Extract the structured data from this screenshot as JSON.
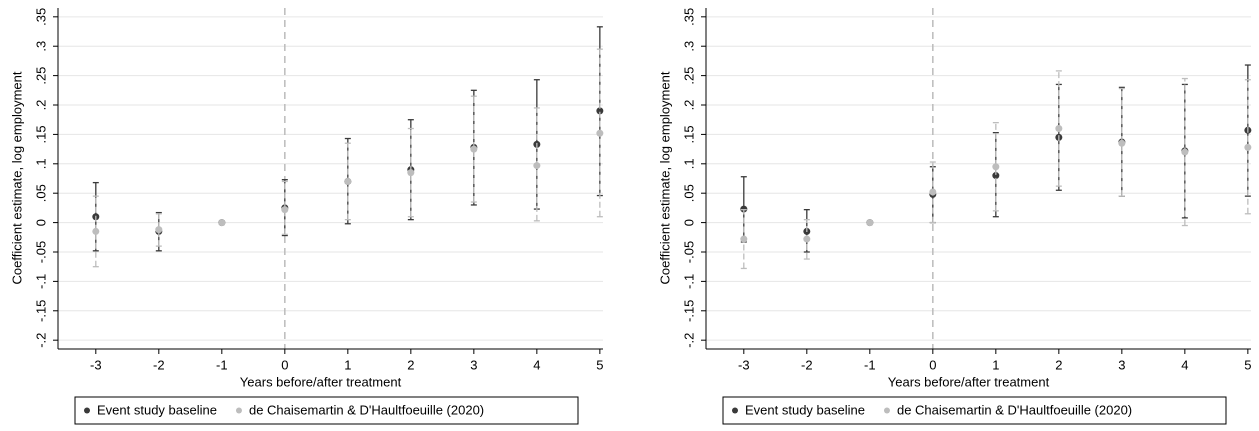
{
  "chart_data": [
    {
      "type": "errorbar",
      "x": [
        -3,
        -2,
        -1,
        0,
        1,
        2,
        3,
        4,
        5
      ],
      "xlabel": "Years before/after treatment",
      "ylabel": "Coefficient estimate, log employment",
      "xlim": [
        -3.6,
        5.05
      ],
      "xticks": [
        -3,
        -2,
        -1,
        0,
        1,
        2,
        3,
        4,
        5
      ],
      "ylim": [
        -0.215,
        0.365
      ],
      "yticks": [
        {
          "value": -0.2,
          "label": "-.2"
        },
        {
          "value": -0.15,
          "label": "-.15"
        },
        {
          "value": -0.1,
          "label": "-.1"
        },
        {
          "value": -0.05,
          "label": "-.05"
        },
        0,
        {
          "value": 0.05,
          "label": ".05"
        },
        {
          "value": 0.1,
          "label": ".1"
        },
        {
          "value": 0.15,
          "label": ".15"
        },
        {
          "value": 0.2,
          "label": ".2"
        },
        {
          "value": 0.25,
          "label": ".25"
        },
        {
          "value": 0.3,
          "label": ".3"
        },
        {
          "value": 0.35,
          "label": ".35"
        }
      ],
      "grid": true,
      "reference_line_x": 0,
      "legend": "bottom",
      "series": [
        {
          "name": "Event study baseline",
          "color": "#3a3a3a",
          "values": [
            0.01,
            -0.015,
            0,
            0.025,
            0.07,
            0.09,
            0.128,
            0.133,
            0.19
          ],
          "ci_low": [
            -0.048,
            -0.048,
            0,
            -0.022,
            -0.002,
            0.005,
            0.03,
            0.023,
            0.046
          ],
          "ci_high": [
            0.068,
            0.017,
            0,
            0.073,
            0.143,
            0.175,
            0.225,
            0.243,
            0.333
          ]
        },
        {
          "name": "de Chaisemartin & D'Haultfoeuille (2020)",
          "color": "#bdbdbd",
          "values": [
            -0.015,
            -0.012,
            0,
            0.022,
            0.07,
            0.085,
            0.125,
            0.097,
            0.152
          ],
          "ci_low": [
            -0.075,
            -0.04,
            0,
            -0.02,
            0.005,
            0.01,
            0.035,
            0.003,
            0.01
          ],
          "ci_high": [
            0.045,
            0.015,
            0,
            0.07,
            0.135,
            0.16,
            0.215,
            0.195,
            0.295
          ]
        }
      ]
    },
    {
      "type": "errorbar",
      "x": [
        -3,
        -2,
        -1,
        0,
        1,
        2,
        3,
        4,
        5
      ],
      "xlabel": "Years before/after treatment",
      "ylabel": "Coefficient estimate, log employment",
      "xlim": [
        -3.6,
        5.05
      ],
      "xticks": [
        -3,
        -2,
        -1,
        0,
        1,
        2,
        3,
        4,
        5
      ],
      "ylim": [
        -0.215,
        0.365
      ],
      "yticks": [
        {
          "value": -0.2,
          "label": "-.2"
        },
        {
          "value": -0.15,
          "label": "-.15"
        },
        {
          "value": -0.1,
          "label": "-.1"
        },
        {
          "value": -0.05,
          "label": "-.05"
        },
        0,
        {
          "value": 0.05,
          "label": ".05"
        },
        {
          "value": 0.1,
          "label": ".1"
        },
        {
          "value": 0.15,
          "label": ".15"
        },
        {
          "value": 0.2,
          "label": ".2"
        },
        {
          "value": 0.25,
          "label": ".25"
        },
        {
          "value": 0.3,
          "label": ".3"
        },
        {
          "value": 0.35,
          "label": ".35"
        }
      ],
      "grid": true,
      "reference_line_x": 0,
      "legend": "bottom",
      "series": [
        {
          "name": "Event study baseline",
          "color": "#3a3a3a",
          "values": [
            0.023,
            -0.015,
            0,
            0.048,
            0.08,
            0.145,
            0.137,
            0.122,
            0.157
          ],
          "ci_low": [
            -0.033,
            -0.05,
            0,
            0,
            0.01,
            0.055,
            0.045,
            0.008,
            0.045
          ],
          "ci_high": [
            0.078,
            0.022,
            0,
            0.095,
            0.153,
            0.235,
            0.23,
            0.235,
            0.268
          ]
        },
        {
          "name": "de Chaisemartin & D'Haultfoeuille (2020)",
          "color": "#bdbdbd",
          "values": [
            -0.028,
            -0.028,
            0,
            0.052,
            0.095,
            0.16,
            0.135,
            0.12,
            0.128
          ],
          "ci_low": [
            -0.078,
            -0.062,
            0,
            0,
            0.02,
            0.062,
            0.045,
            -0.005,
            0.015
          ],
          "ci_high": [
            0.022,
            0.005,
            0,
            0.103,
            0.17,
            0.258,
            0.228,
            0.245,
            0.243
          ]
        }
      ]
    }
  ]
}
